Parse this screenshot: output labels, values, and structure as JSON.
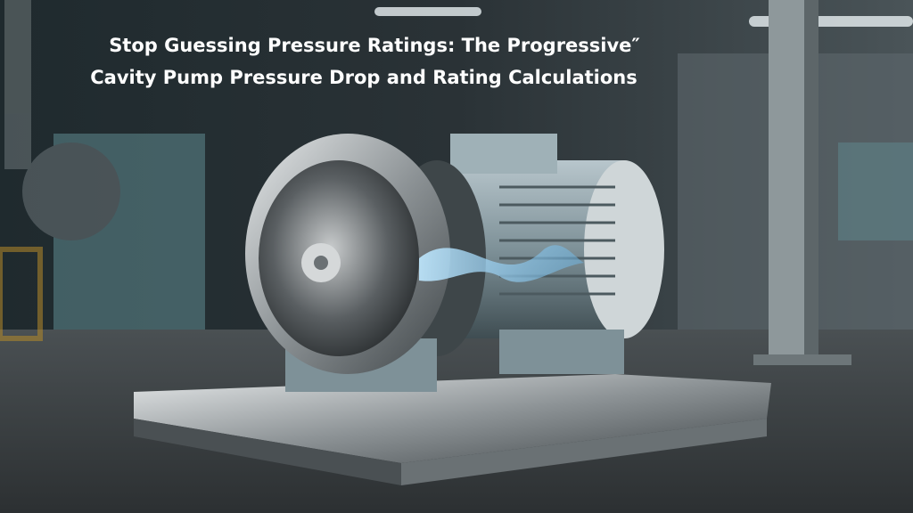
{
  "title": {
    "line1": "Stop Guessing Pressure Ratings: The Progressive″",
    "line2": "Cavity Pump Pressure Drop and Rating Calculations"
  }
}
